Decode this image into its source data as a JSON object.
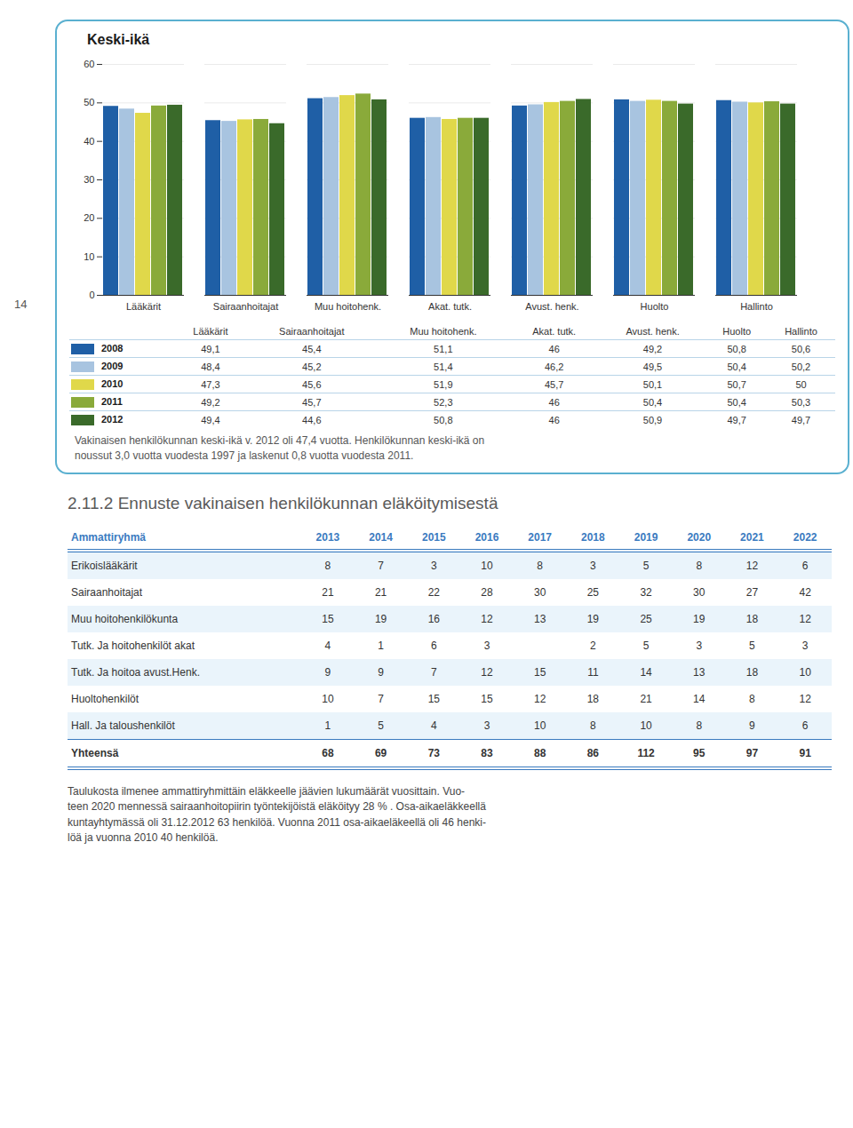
{
  "chart_data": {
    "type": "bar",
    "title": "Keski-ikä",
    "categories": [
      "Lääkärit",
      "Sairaanhoitajat",
      "Muu hoitohenk.",
      "Akat. tutk.",
      "Avust. henk.",
      "Huolto",
      "Hallinto"
    ],
    "series": [
      {
        "name": "2008",
        "color": "#1f5fa6",
        "values": [
          49.1,
          45.4,
          51.1,
          46.0,
          49.2,
          50.8,
          50.6
        ],
        "value_labels": [
          "49,1",
          "45,4",
          "51,1",
          "46",
          "49,2",
          "50,8",
          "50,6"
        ]
      },
      {
        "name": "2009",
        "color": "#a8c4e0",
        "values": [
          48.4,
          45.2,
          51.4,
          46.2,
          49.5,
          50.4,
          50.2
        ],
        "value_labels": [
          "48,4",
          "45,2",
          "51,4",
          "46,2",
          "49,5",
          "50,4",
          "50,2"
        ]
      },
      {
        "name": "2010",
        "color": "#e0d84a",
        "values": [
          47.3,
          45.6,
          51.9,
          45.7,
          50.1,
          50.7,
          50.0
        ],
        "value_labels": [
          "47,3",
          "45,6",
          "51,9",
          "45,7",
          "50,1",
          "50,7",
          "50"
        ]
      },
      {
        "name": "2011",
        "color": "#8aaa3a",
        "values": [
          49.2,
          45.7,
          52.3,
          46.0,
          50.4,
          50.4,
          50.3
        ],
        "value_labels": [
          "49,2",
          "45,7",
          "52,3",
          "46",
          "50,4",
          "50,4",
          "50,3"
        ]
      },
      {
        "name": "2012",
        "color": "#3a6a2a",
        "values": [
          49.4,
          44.6,
          50.8,
          46.0,
          50.9,
          49.7,
          49.7
        ],
        "value_labels": [
          "49,4",
          "44,6",
          "50,8",
          "46",
          "50,9",
          "49,7",
          "49,7"
        ]
      }
    ],
    "ylim": [
      0,
      60
    ],
    "yticks": [
      0,
      10,
      20,
      30,
      40,
      50,
      60
    ],
    "grid": true,
    "legend": "bottom",
    "caption": [
      "Vakinaisen henkilökunnan keski-ikä v. 2012 oli 47,4 vuotta. Henkilökunnan keski-ikä on",
      "noussut 3,0 vuotta vuodesta 1997 ja laskenut 0,8 vuotta vuodesta 2011."
    ]
  },
  "section_title": "2.11.2 Ennuste vakinaisen henkilökunnan eläköitymisestä",
  "table": {
    "header": [
      "Ammattiryhmä",
      "2013",
      "2014",
      "2015",
      "2016",
      "2017",
      "2018",
      "2019",
      "2020",
      "2021",
      "2022"
    ],
    "rows": [
      [
        "Erikoislääkärit",
        "8",
        "7",
        "3",
        "10",
        "8",
        "3",
        "5",
        "8",
        "12",
        "6"
      ],
      [
        "Sairaanhoitajat",
        "21",
        "21",
        "22",
        "28",
        "30",
        "25",
        "32",
        "30",
        "27",
        "42"
      ],
      [
        "Muu hoitohenkilökunta",
        "15",
        "19",
        "16",
        "12",
        "13",
        "19",
        "25",
        "19",
        "18",
        "12"
      ],
      [
        "Tutk. Ja hoitohenkilöt akat",
        "4",
        "1",
        "6",
        "3",
        null,
        "2",
        "5",
        "3",
        "5",
        "3"
      ],
      [
        "Tutk. Ja hoitoa avust.Henk.",
        "9",
        "9",
        "7",
        "12",
        "15",
        "11",
        "14",
        "13",
        "18",
        "10"
      ],
      [
        "Huoltohenkilöt",
        "10",
        "7",
        "15",
        "15",
        "12",
        "18",
        "21",
        "14",
        "8",
        "12"
      ],
      [
        "Hall. Ja taloushenkilöt",
        "1",
        "5",
        "4",
        "3",
        "10",
        "8",
        "10",
        "8",
        "9",
        "6"
      ],
      [
        "Yhteensä",
        "68",
        "69",
        "73",
        "83",
        "88",
        "86",
        "112",
        "95",
        "97",
        "91"
      ]
    ]
  },
  "text_lines": [
    "Taulukosta ilmenee ammattiryhmittäin eläkkeelle jäävien lukumäärät vuosittain. Vuo-",
    "teen 2020 mennessä sairaanhoitopiirin työntekijöistä eläköityy 28 % . Osa-aikaeläkkeellä",
    "kuntayhtymässä oli 31.12.2012 63 henkilöä. Vuonna 2011 osa-aikaeläkeellä oli 46 henki-",
    "löä ja vuonna 2010 40 henkilöä."
  ],
  "page_number": "14"
}
